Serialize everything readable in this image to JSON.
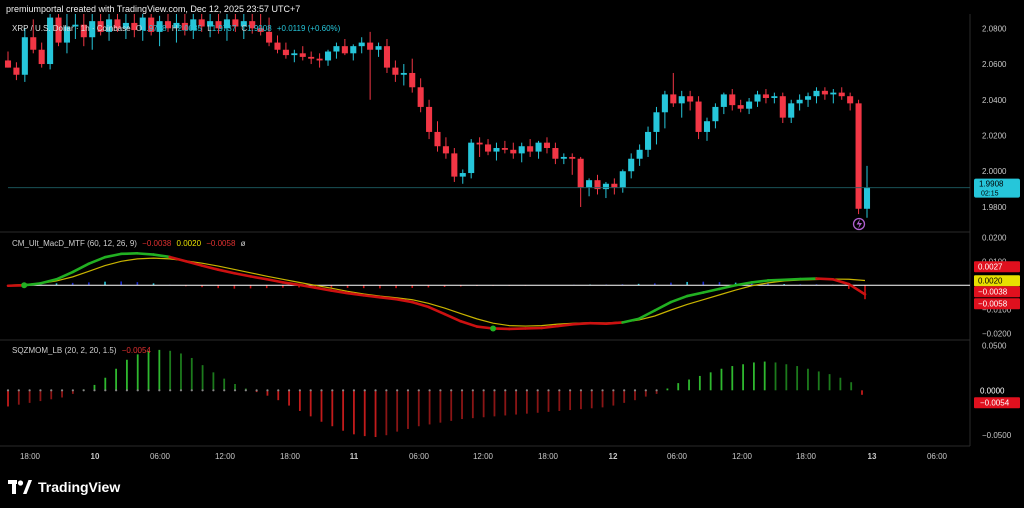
{
  "credit": "premiumportal created with TradingView.com, Dec 12, 2025 23:57 UTC+7",
  "brand": {
    "name": "TradingView",
    "logo_icon": "tradingview-logo-icon"
  },
  "colors": {
    "up": "#26c6da",
    "down": "#f23645",
    "macd_fast": "#22b022",
    "macd_fast_neg": "#cc1111",
    "macd_signal": "#c8b400",
    "hist_pos_dark": "#1a2acc",
    "hist_pos_light": "#26c6da",
    "hist_neg": "#cc1111",
    "sqz_green": "#2fb82f",
    "sqz_red": "#c21b1b",
    "sqz_dot": "#888888",
    "zero_line": "#ffffff"
  },
  "price_legend": {
    "symbol": "XRP / U.S. Dollar · 1h · Coinbase",
    "o_label": "O",
    "o": "1.9788",
    "h_label": "H",
    "h": "2.0035",
    "l_label": "L",
    "l": "1.9737",
    "c_label": "C",
    "c": "1.9908",
    "change": "+0.0119 (+0.60%)"
  },
  "macd_legend": {
    "name": "CM_Ult_MacD_MTF (60, 12, 26, 9)",
    "v1": "−0.0038",
    "v2": "0.0020",
    "v3": "−0.0058",
    "v4": "ø"
  },
  "sqz_legend": {
    "name": "SQZMOM_LB (20, 2, 20, 1.5)",
    "v1": "−0.0054"
  },
  "chart_data": [
    {
      "type": "candlestick",
      "title": "XRP / U.S. Dollar · 1h · Coinbase",
      "ylim": [
        1.966,
        2.088
      ],
      "y_ticks": [
        "2.0800",
        "2.0600",
        "2.0400",
        "2.0200",
        "2.0000",
        "1.9800"
      ],
      "last_price": "1.9908",
      "countdown": "02:15",
      "x_ticks": [
        "18:00",
        "10",
        "06:00",
        "12:00",
        "18:00",
        "11",
        "06:00",
        "12:00",
        "18:00",
        "12",
        "06:00",
        "12:00",
        "18:00",
        "13",
        "06:00"
      ],
      "candles": [
        [
          2.062,
          2.067,
          2.058,
          2.058
        ],
        [
          2.058,
          2.061,
          2.051,
          2.054
        ],
        [
          2.054,
          2.08,
          2.05,
          2.075
        ],
        [
          2.075,
          2.085,
          2.066,
          2.068
        ],
        [
          2.068,
          2.072,
          2.058,
          2.06
        ],
        [
          2.06,
          2.088,
          2.057,
          2.086
        ],
        [
          2.086,
          2.088,
          2.07,
          2.072
        ],
        [
          2.072,
          2.088,
          2.066,
          2.081
        ],
        [
          2.081,
          2.088,
          2.074,
          2.082
        ],
        [
          2.082,
          2.088,
          2.07,
          2.075
        ],
        [
          2.075,
          2.088,
          2.068,
          2.084
        ],
        [
          2.084,
          2.088,
          2.076,
          2.078
        ],
        [
          2.078,
          2.088,
          2.073,
          2.085
        ],
        [
          2.085,
          2.088,
          2.078,
          2.08
        ],
        [
          2.08,
          2.088,
          2.074,
          2.083
        ],
        [
          2.083,
          2.088,
          2.075,
          2.079
        ],
        [
          2.079,
          2.088,
          2.073,
          2.086
        ],
        [
          2.086,
          2.088,
          2.076,
          2.078
        ],
        [
          2.078,
          2.087,
          2.07,
          2.084
        ],
        [
          2.084,
          2.088,
          2.078,
          2.08
        ],
        [
          2.08,
          2.088,
          2.072,
          2.083
        ],
        [
          2.083,
          2.088,
          2.076,
          2.079
        ],
        [
          2.079,
          2.088,
          2.074,
          2.085
        ],
        [
          2.085,
          2.088,
          2.078,
          2.081
        ],
        [
          2.081,
          2.088,
          2.075,
          2.084
        ],
        [
          2.084,
          2.088,
          2.077,
          2.08
        ],
        [
          2.08,
          2.088,
          2.073,
          2.085
        ],
        [
          2.085,
          2.088,
          2.078,
          2.081
        ],
        [
          2.081,
          2.088,
          2.074,
          2.084
        ],
        [
          2.084,
          2.088,
          2.077,
          2.08
        ],
        [
          2.08,
          2.088,
          2.076,
          2.078
        ],
        [
          2.078,
          2.086,
          2.07,
          2.072
        ],
        [
          2.072,
          2.076,
          2.066,
          2.068
        ],
        [
          2.068,
          2.072,
          2.063,
          2.065
        ],
        [
          2.065,
          2.068,
          2.061,
          2.066
        ],
        [
          2.066,
          2.07,
          2.062,
          2.064
        ],
        [
          2.064,
          2.067,
          2.06,
          2.063
        ],
        [
          2.063,
          2.066,
          2.058,
          2.062
        ],
        [
          2.062,
          2.068,
          2.059,
          2.067
        ],
        [
          2.067,
          2.072,
          2.063,
          2.07
        ],
        [
          2.07,
          2.074,
          2.065,
          2.066
        ],
        [
          2.066,
          2.071,
          2.062,
          2.07
        ],
        [
          2.07,
          2.075,
          2.066,
          2.072
        ],
        [
          2.072,
          2.078,
          2.04,
          2.068
        ],
        [
          2.068,
          2.072,
          2.064,
          2.07
        ],
        [
          2.07,
          2.074,
          2.055,
          2.058
        ],
        [
          2.058,
          2.062,
          2.05,
          2.054
        ],
        [
          2.054,
          2.06,
          2.048,
          2.055
        ],
        [
          2.055,
          2.063,
          2.044,
          2.047
        ],
        [
          2.047,
          2.052,
          2.033,
          2.036
        ],
        [
          2.036,
          2.04,
          2.018,
          2.022
        ],
        [
          2.022,
          2.028,
          2.011,
          2.014
        ],
        [
          2.014,
          2.019,
          2.007,
          2.01
        ],
        [
          2.01,
          2.013,
          1.994,
          1.997
        ],
        [
          1.997,
          2.001,
          1.993,
          1.999
        ],
        [
          1.999,
          2.018,
          1.996,
          2.016
        ],
        [
          2.016,
          2.019,
          2.008,
          2.015
        ],
        [
          2.015,
          2.018,
          2.009,
          2.011
        ],
        [
          2.011,
          2.016,
          2.006,
          2.013
        ],
        [
          2.013,
          2.017,
          2.01,
          2.012
        ],
        [
          2.012,
          2.016,
          2.007,
          2.01
        ],
        [
          2.01,
          2.016,
          2.005,
          2.014
        ],
        [
          2.014,
          2.018,
          2.008,
          2.011
        ],
        [
          2.011,
          2.017,
          2.007,
          2.016
        ],
        [
          2.016,
          2.019,
          2.01,
          2.013
        ],
        [
          2.013,
          2.016,
          2.004,
          2.007
        ],
        [
          2.007,
          2.01,
          2.004,
          2.008
        ],
        [
          2.008,
          2.01,
          1.998,
          2.007
        ],
        [
          2.007,
          2.008,
          1.98,
          1.991
        ],
        [
          1.991,
          1.996,
          1.986,
          1.995
        ],
        [
          1.995,
          1.998,
          1.987,
          1.99
        ],
        [
          1.99,
          1.994,
          1.985,
          1.993
        ],
        [
          1.993,
          1.996,
          1.987,
          1.991
        ],
        [
          1.991,
          2.001,
          1.988,
          2.0
        ],
        [
          2.0,
          2.01,
          1.996,
          2.007
        ],
        [
          2.007,
          2.015,
          2.003,
          2.012
        ],
        [
          2.012,
          2.025,
          2.008,
          2.022
        ],
        [
          2.022,
          2.036,
          2.015,
          2.033
        ],
        [
          2.033,
          2.045,
          2.024,
          2.043
        ],
        [
          2.043,
          2.055,
          2.036,
          2.038
        ],
        [
          2.038,
          2.045,
          2.03,
          2.042
        ],
        [
          2.042,
          2.045,
          2.034,
          2.039
        ],
        [
          2.039,
          2.042,
          2.018,
          2.022
        ],
        [
          2.022,
          2.03,
          2.017,
          2.028
        ],
        [
          2.028,
          2.038,
          2.024,
          2.036
        ],
        [
          2.036,
          2.044,
          2.032,
          2.043
        ],
        [
          2.043,
          2.046,
          2.034,
          2.037
        ],
        [
          2.037,
          2.04,
          2.033,
          2.035
        ],
        [
          2.035,
          2.041,
          2.032,
          2.039
        ],
        [
          2.039,
          2.045,
          2.036,
          2.043
        ],
        [
          2.043,
          2.046,
          2.038,
          2.041
        ],
        [
          2.041,
          2.044,
          2.038,
          2.042
        ],
        [
          2.042,
          2.044,
          2.027,
          2.03
        ],
        [
          2.03,
          2.04,
          2.027,
          2.038
        ],
        [
          2.038,
          2.043,
          2.034,
          2.04
        ],
        [
          2.04,
          2.044,
          2.036,
          2.042
        ],
        [
          2.042,
          2.047,
          2.038,
          2.045
        ],
        [
          2.045,
          2.047,
          2.04,
          2.043
        ],
        [
          2.043,
          2.046,
          2.038,
          2.044
        ],
        [
          2.044,
          2.047,
          2.04,
          2.042
        ],
        [
          2.042,
          2.044,
          2.034,
          2.038
        ],
        [
          2.038,
          2.04,
          1.976,
          1.979
        ],
        [
          1.979,
          2.003,
          1.974,
          1.991
        ]
      ]
    },
    {
      "type": "line",
      "title": "CM_Ult_MacD_MTF (60, 12, 26, 9)",
      "ylim": [
        -0.0228,
        0.0222
      ],
      "y_ticks": [
        "0.0200",
        "0.0100",
        "−0.0100",
        "−0.0200"
      ],
      "value_badges": [
        "0.0027",
        "0.0020",
        "−0.0038",
        "−0.0058"
      ],
      "series": [
        {
          "role": "macd",
          "values": [
            -0.0002,
            0,
            0.0008,
            0.0025,
            0.0055,
            0.009,
            0.0117,
            0.0131,
            0.0133,
            0.0128,
            0.0118,
            0.01,
            0.0082,
            0.0065,
            0.005,
            0.0037,
            0.0025,
            0.0012,
            0.0002,
            -0.001,
            -0.0022,
            -0.0033,
            -0.0042,
            -0.005,
            -0.0058,
            -0.007,
            -0.009,
            -0.012,
            -0.015,
            -0.0172,
            -0.018,
            -0.0182,
            -0.018,
            -0.0178,
            -0.017,
            -0.0162,
            -0.0158,
            -0.016,
            -0.0155,
            -0.014,
            -0.0105,
            -0.007,
            -0.0045,
            -0.003,
            -0.0015,
            0.0,
            0.0012,
            0.002,
            0.0023,
            0.0026,
            0.0028,
            0.0025,
            0.0005,
            -0.0038
          ]
        },
        {
          "role": "signal",
          "values": [
            0.0,
            0.0003,
            0.0008,
            0.0018,
            0.0035,
            0.0058,
            0.0082,
            0.01,
            0.011,
            0.0113,
            0.011,
            0.0102,
            0.0092,
            0.008,
            0.0066,
            0.0052,
            0.0038,
            0.0025,
            0.0012,
            0.0,
            -0.0012,
            -0.0025,
            -0.0036,
            -0.0045,
            -0.0052,
            -0.006,
            -0.0075,
            -0.0095,
            -0.0118,
            -0.014,
            -0.0158,
            -0.0168,
            -0.017,
            -0.0168,
            -0.0162,
            -0.0158,
            -0.0156,
            -0.0157,
            -0.0153,
            -0.0145,
            -0.0128,
            -0.0103,
            -0.008,
            -0.006,
            -0.004,
            -0.002,
            -0.0002,
            0.001,
            0.0018,
            0.0022,
            0.0024,
            0.0026,
            0.0025,
            0.002
          ]
        }
      ],
      "histogram": [
        0,
        0,
        0.0004,
        0.0008,
        0.001,
        0.0012,
        0.0015,
        0.0016,
        0.0013,
        0.0008,
        0.0002,
        -0.0004,
        -0.0008,
        -0.0012,
        -0.0014,
        -0.0013,
        -0.0012,
        -0.001,
        -0.0009,
        -0.0009,
        -0.001,
        -0.0011,
        -0.0012,
        -0.0013,
        -0.0012,
        -0.0011,
        -0.0009,
        -0.0007,
        -0.0005,
        -0.0003,
        -0.0002,
        -0.0002,
        -0.0001,
        0.0,
        0.0001,
        0.0002,
        0.0003,
        0.0003,
        0.0004,
        0.0006,
        0.0008,
        0.0011,
        0.0014,
        0.0015,
        0.0013,
        0.0011,
        0.0009,
        0.0007,
        0.0005,
        0.0004,
        0.0004,
        0.0002,
        -0.0015,
        -0.0058
      ]
    },
    {
      "type": "bar",
      "title": "SQZMOM_LB (20, 2, 20, 1.5)",
      "ylim": [
        -0.062,
        0.056
      ],
      "y_ticks": [
        "0.0500",
        "0.0000",
        "−0.0500"
      ],
      "value_badges": [
        "0.0000",
        "−0.0054"
      ],
      "values": [
        -0.018,
        -0.016,
        -0.014,
        -0.012,
        -0.01,
        -0.008,
        -0.004,
        0.001,
        0.006,
        0.014,
        0.024,
        0.034,
        0.04,
        0.044,
        0.045,
        0.044,
        0.041,
        0.036,
        0.028,
        0.02,
        0.013,
        0.007,
        0.002,
        -0.002,
        -0.006,
        -0.011,
        -0.017,
        -0.023,
        -0.029,
        -0.035,
        -0.04,
        -0.045,
        -0.049,
        -0.051,
        -0.052,
        -0.05,
        -0.046,
        -0.043,
        -0.04,
        -0.038,
        -0.036,
        -0.034,
        -0.032,
        -0.031,
        -0.03,
        -0.029,
        -0.028,
        -0.027,
        -0.026,
        -0.025,
        -0.024,
        -0.023,
        -0.022,
        -0.021,
        -0.02,
        -0.019,
        -0.017,
        -0.014,
        -0.011,
        -0.007,
        -0.004,
        0.002,
        0.008,
        0.012,
        0.016,
        0.02,
        0.024,
        0.027,
        0.029,
        0.031,
        0.032,
        0.031,
        0.029,
        0.027,
        0.024,
        0.021,
        0.018,
        0.014,
        0.009,
        -0.005
      ],
      "squeeze_dots": [
        0,
        1,
        2,
        3,
        4,
        5,
        6,
        7,
        8,
        9,
        10,
        11,
        12,
        13,
        14,
        15,
        16,
        17,
        18,
        19,
        20,
        21,
        22,
        23,
        24,
        25,
        26,
        27,
        28,
        29,
        30,
        31,
        32,
        33,
        34,
        35,
        36,
        37,
        38,
        39,
        40,
        41,
        42,
        43,
        44,
        45,
        46,
        47,
        48,
        49,
        50,
        51,
        52,
        53,
        54,
        55,
        56,
        57,
        58,
        59,
        60
      ]
    }
  ]
}
